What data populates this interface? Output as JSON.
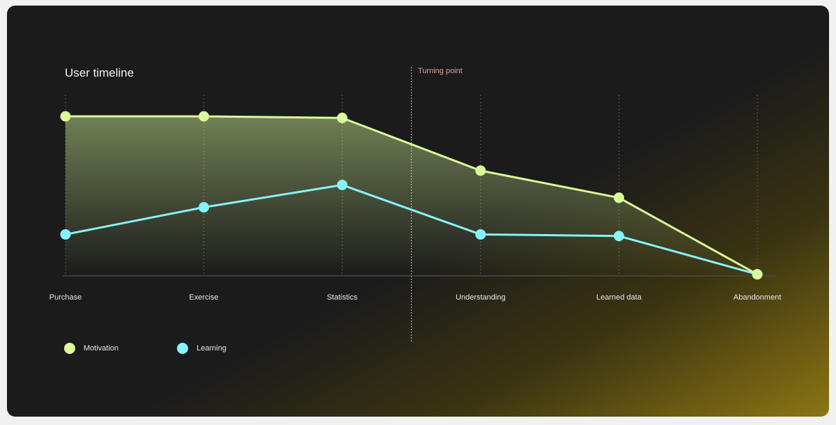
{
  "chart_data": {
    "type": "line",
    "title": "User timeline",
    "categories": [
      "Purchase",
      "Exercise",
      "Statistics",
      "Understanding",
      "Learned data",
      "Abandonment"
    ],
    "series": [
      {
        "name": "Motivation",
        "values": [
          100,
          100,
          99,
          66,
          49,
          1
        ],
        "color": "#d9fb9a"
      },
      {
        "name": "Learning",
        "values": [
          26,
          43,
          57,
          26,
          25,
          1
        ],
        "color": "#86f3fa"
      }
    ],
    "ylim": [
      0,
      100
    ],
    "annotation": {
      "label": "Turning point",
      "between": [
        "Statistics",
        "Understanding"
      ]
    },
    "legend": "bottom-left",
    "grid": "vertical-dotted"
  }
}
